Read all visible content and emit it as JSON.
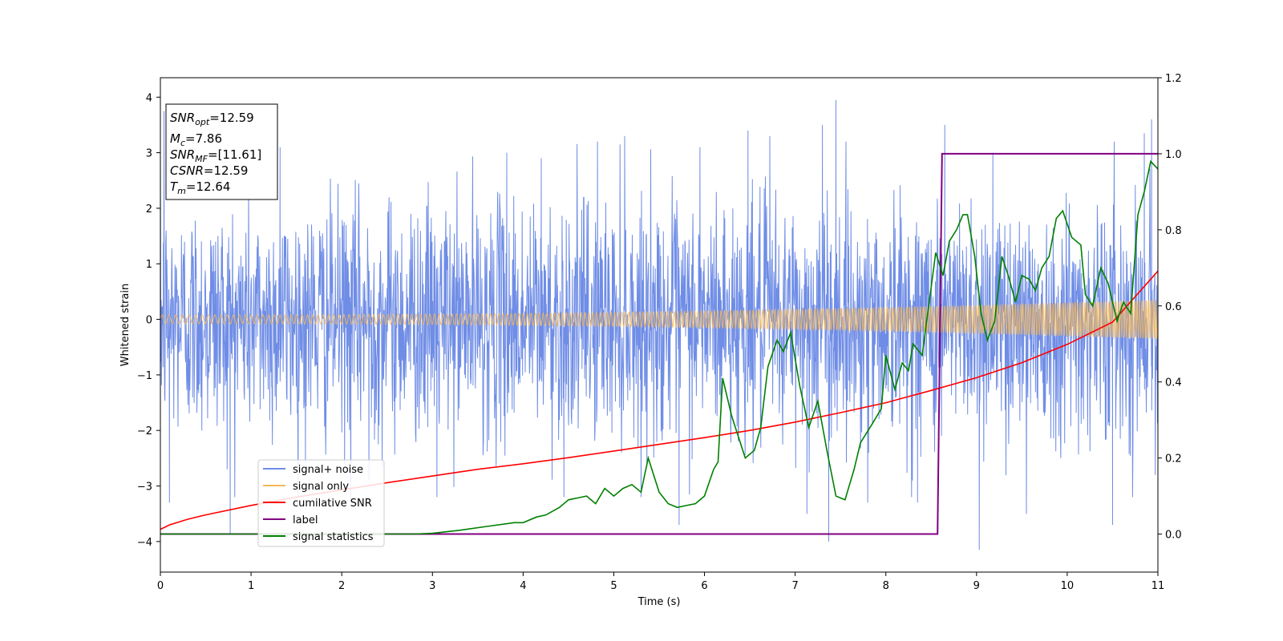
{
  "chart_data": {
    "type": "line",
    "xlabel": "Time (s)",
    "ylabel": "Whitened strain",
    "xlim": [
      0,
      11
    ],
    "ylim_left": [
      -4.55,
      4.35
    ],
    "ylim_right": [
      -0.1,
      1.2
    ],
    "x_ticks": [
      0,
      1,
      2,
      3,
      4,
      5,
      6,
      7,
      8,
      9,
      10,
      11
    ],
    "y_ticks_left": [
      -4,
      -3,
      -2,
      -1,
      0,
      1,
      2,
      3,
      4
    ],
    "y_ticks_right": [
      0.0,
      0.2,
      0.4,
      0.6,
      0.8,
      1.0,
      1.2
    ],
    "legend_position": "lower-left",
    "grid": false,
    "info_box": {
      "snr_opt": {
        "main": "SNR",
        "sub": "opt",
        "value": "=12.59"
      },
      "mc": {
        "main": "M",
        "sub": "c",
        "value": "=7.86"
      },
      "snr_mf": {
        "main": "SNR",
        "sub": "MF",
        "value": "=[11.61]"
      },
      "csnr": {
        "main": "CSNR",
        "value": "=12.59"
      },
      "tm": {
        "main": "T",
        "sub": "m",
        "value": "=12.64"
      }
    },
    "series": [
      {
        "name": "signal+ noise",
        "axis": "left",
        "color": "#6f8de6",
        "description_noise_std": 1.05,
        "outlier_points": [
          [
            0.04,
            3.75
          ],
          [
            0.1,
            -3.3
          ],
          [
            0.77,
            -3.85
          ],
          [
            1.32,
            3.1
          ],
          [
            2.1,
            -3.3
          ],
          [
            2.3,
            -2.9
          ],
          [
            3.05,
            -3.2
          ],
          [
            3.82,
            3.0
          ],
          [
            4.2,
            2.9
          ],
          [
            4.45,
            -3.2
          ],
          [
            4.82,
            3.2
          ],
          [
            5.12,
            3.3
          ],
          [
            5.72,
            -3.7
          ],
          [
            5.95,
            3.1
          ],
          [
            6.48,
            3.4
          ],
          [
            6.72,
            3.3
          ],
          [
            7.13,
            -3.5
          ],
          [
            7.3,
            3.5
          ],
          [
            7.37,
            -4.0
          ],
          [
            7.45,
            3.95
          ],
          [
            7.8,
            -3.3
          ],
          [
            8.35,
            -3.3
          ],
          [
            8.65,
            3.5
          ],
          [
            9.03,
            -4.15
          ],
          [
            9.18,
            3.0
          ],
          [
            9.55,
            -3.5
          ],
          [
            10.5,
            -3.7
          ],
          [
            10.85,
            3.35
          ],
          [
            10.93,
            3.6
          ]
        ]
      },
      {
        "name": "signal only",
        "axis": "left",
        "color": "#f5b85a",
        "amplitude_start": 0.08,
        "amplitude_end": 0.35
      },
      {
        "name": "cumilative SNR",
        "axis": "left",
        "color": "#ff0000",
        "x": [
          0.0,
          0.1,
          0.3,
          0.5,
          1.0,
          1.5,
          2.0,
          2.5,
          3.0,
          3.5,
          4.0,
          4.5,
          5.0,
          5.5,
          6.0,
          6.5,
          7.0,
          7.5,
          8.0,
          8.5,
          9.0,
          9.5,
          10.0,
          10.5,
          11.0
        ],
        "y": [
          -3.78,
          -3.7,
          -3.6,
          -3.52,
          -3.35,
          -3.2,
          -3.07,
          -2.94,
          -2.82,
          -2.7,
          -2.6,
          -2.49,
          -2.37,
          -2.25,
          -2.13,
          -2.0,
          -1.85,
          -1.68,
          -1.5,
          -1.28,
          -1.05,
          -0.78,
          -0.45,
          -0.05,
          0.87
        ]
      },
      {
        "name": "label",
        "axis": "right",
        "color": "#800080",
        "x": [
          0,
          8.57,
          8.62,
          11
        ],
        "y": [
          0.0,
          0.0,
          1.0,
          1.0
        ]
      },
      {
        "name": "signal statistics",
        "axis": "right",
        "color": "#008000",
        "x": [
          0.0,
          0.5,
          1.0,
          1.5,
          2.0,
          2.5,
          2.8,
          3.0,
          3.3,
          3.6,
          3.9,
          4.0,
          4.15,
          4.25,
          4.4,
          4.5,
          4.6,
          4.7,
          4.8,
          4.9,
          4.95,
          5.0,
          5.1,
          5.2,
          5.3,
          5.38,
          5.5,
          5.6,
          5.7,
          5.8,
          5.9,
          6.0,
          6.1,
          6.15,
          6.2,
          6.3,
          6.45,
          6.55,
          6.62,
          6.7,
          6.8,
          6.87,
          6.95,
          7.05,
          7.15,
          7.25,
          7.35,
          7.45,
          7.55,
          7.65,
          7.72,
          7.85,
          7.95,
          8.0,
          8.1,
          8.18,
          8.25,
          8.3,
          8.4,
          8.5,
          8.55,
          8.63,
          8.7,
          8.78,
          8.85,
          8.9,
          8.98,
          9.05,
          9.12,
          9.2,
          9.28,
          9.35,
          9.43,
          9.5,
          9.58,
          9.65,
          9.72,
          9.8,
          9.88,
          9.95,
          10.05,
          10.15,
          10.2,
          10.28,
          10.37,
          10.45,
          10.55,
          10.62,
          10.7,
          10.78,
          10.85,
          10.92,
          11.0
        ],
        "y": [
          0.0,
          0.0,
          0.0,
          0.0,
          0.0,
          0.0,
          0.0,
          0.002,
          0.01,
          0.02,
          0.03,
          0.03,
          0.045,
          0.05,
          0.07,
          0.09,
          0.095,
          0.1,
          0.08,
          0.12,
          0.11,
          0.1,
          0.12,
          0.13,
          0.11,
          0.2,
          0.11,
          0.08,
          0.07,
          0.075,
          0.08,
          0.1,
          0.17,
          0.19,
          0.41,
          0.31,
          0.2,
          0.22,
          0.28,
          0.44,
          0.51,
          0.48,
          0.53,
          0.39,
          0.28,
          0.35,
          0.22,
          0.1,
          0.09,
          0.17,
          0.24,
          0.29,
          0.33,
          0.47,
          0.38,
          0.45,
          0.43,
          0.5,
          0.47,
          0.65,
          0.74,
          0.68,
          0.77,
          0.8,
          0.84,
          0.84,
          0.73,
          0.58,
          0.51,
          0.56,
          0.73,
          0.68,
          0.61,
          0.68,
          0.67,
          0.64,
          0.7,
          0.73,
          0.83,
          0.85,
          0.78,
          0.76,
          0.63,
          0.6,
          0.7,
          0.66,
          0.56,
          0.61,
          0.58,
          0.84,
          0.9,
          0.98,
          0.96
        ]
      }
    ]
  }
}
